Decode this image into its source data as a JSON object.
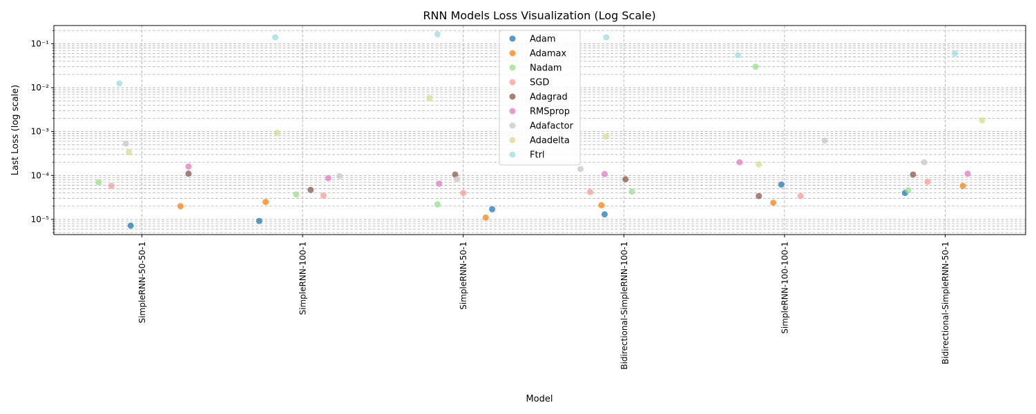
{
  "chart_data": {
    "type": "scatter",
    "title": "RNN Models Loss Visualization (Log Scale)",
    "xlabel": "Model",
    "ylabel": "Last Loss (log scale)",
    "yscale": "log",
    "ylim": [
      4.5e-06,
      0.26
    ],
    "ytick_labels": [
      "10⁻⁵",
      "10⁻⁴",
      "10⁻³",
      "10⁻²",
      "10⁻¹"
    ],
    "ytick_values": [
      1e-05,
      0.0001,
      0.001,
      0.01,
      0.1
    ],
    "grid": true,
    "legend_position": "top-center",
    "categories": [
      "SimpleRNN-50-50-1",
      "SimpleRNN-100-1",
      "SimpleRNN-50-1",
      "Bidirectional-SimpleRNN-100-1",
      "SimpleRNN-100-100-1",
      "Bidirectional-SimpleRNN-50-1"
    ],
    "series": [
      {
        "name": "Adam",
        "color": "#1f77b4",
        "points": [
          [
            -0.07,
            7.2e-06
          ],
          [
            -0.27,
            9.2e-06
          ],
          [
            0.18,
            1.7e-05
          ],
          [
            -0.12,
            1.3e-05
          ],
          [
            -0.02,
            6.2e-05
          ],
          [
            -0.25,
            4e-05
          ]
        ]
      },
      {
        "name": "Adamax",
        "color": "#ff7f0e",
        "points": [
          [
            0.24,
            2e-05
          ],
          [
            -0.23,
            2.5e-05
          ],
          [
            0.14,
            1.1e-05
          ],
          [
            -0.14,
            2.1e-05
          ],
          [
            -0.07,
            2.4e-05
          ],
          [
            0.11,
            5.8e-05
          ]
        ]
      },
      {
        "name": "Nadam",
        "color": "#98df8a",
        "points": [
          [
            -0.27,
            7e-05
          ],
          [
            -0.04,
            3.7e-05
          ],
          [
            -0.16,
            2.2e-05
          ],
          [
            0.05,
            4.3e-05
          ],
          [
            -0.18,
            0.03
          ],
          [
            -0.23,
            4.6e-05
          ]
        ]
      },
      {
        "name": "SGD",
        "color": "#ff9896",
        "points": [
          [
            -0.19,
            5.8e-05
          ],
          [
            0.13,
            3.5e-05
          ],
          [
            0.0,
            4e-05
          ],
          [
            -0.21,
            4.2e-05
          ],
          [
            0.1,
            3.4e-05
          ],
          [
            -0.11,
            7.2e-05
          ]
        ]
      },
      {
        "name": "Adagrad",
        "color": "#8c564b",
        "points": [
          [
            0.29,
            0.00011
          ],
          [
            0.05,
            4.7e-05
          ],
          [
            -0.05,
            0.000105
          ],
          [
            0.01,
            8.2e-05
          ],
          [
            -0.16,
            3.4e-05
          ],
          [
            -0.2,
            0.000105
          ]
        ]
      },
      {
        "name": "RMSprop",
        "color": "#e377c2",
        "points": [
          [
            0.29,
            0.00016
          ],
          [
            0.16,
            8.7e-05
          ],
          [
            -0.15,
            6.5e-05
          ],
          [
            -0.12,
            0.000108
          ],
          [
            -0.28,
            0.0002
          ],
          [
            0.14,
            0.00011
          ]
        ]
      },
      {
        "name": "Adafactor",
        "color": "#c7c7c7",
        "points": [
          [
            -0.1,
            0.00053
          ],
          [
            0.23,
            9.7e-05
          ],
          [
            -0.04,
            8.2e-05
          ],
          [
            -0.27,
            0.00014
          ],
          [
            0.25,
            0.00062
          ],
          [
            -0.13,
            0.0002
          ]
        ]
      },
      {
        "name": "Adadelta",
        "color": "#dbdb8d",
        "points": [
          [
            -0.08,
            0.00034
          ],
          [
            -0.16,
            0.00094
          ],
          [
            -0.21,
            0.0058
          ],
          [
            -0.11,
            0.00077
          ],
          [
            -0.16,
            0.00018
          ],
          [
            0.23,
            0.0018
          ]
        ]
      },
      {
        "name": "Ftrl",
        "color": "#9edae5",
        "points": [
          [
            -0.14,
            0.0125
          ],
          [
            -0.17,
            0.14
          ],
          [
            -0.16,
            0.165
          ],
          [
            -0.11,
            0.14
          ],
          [
            -0.29,
            0.055
          ],
          [
            0.06,
            0.06
          ]
        ]
      }
    ]
  }
}
